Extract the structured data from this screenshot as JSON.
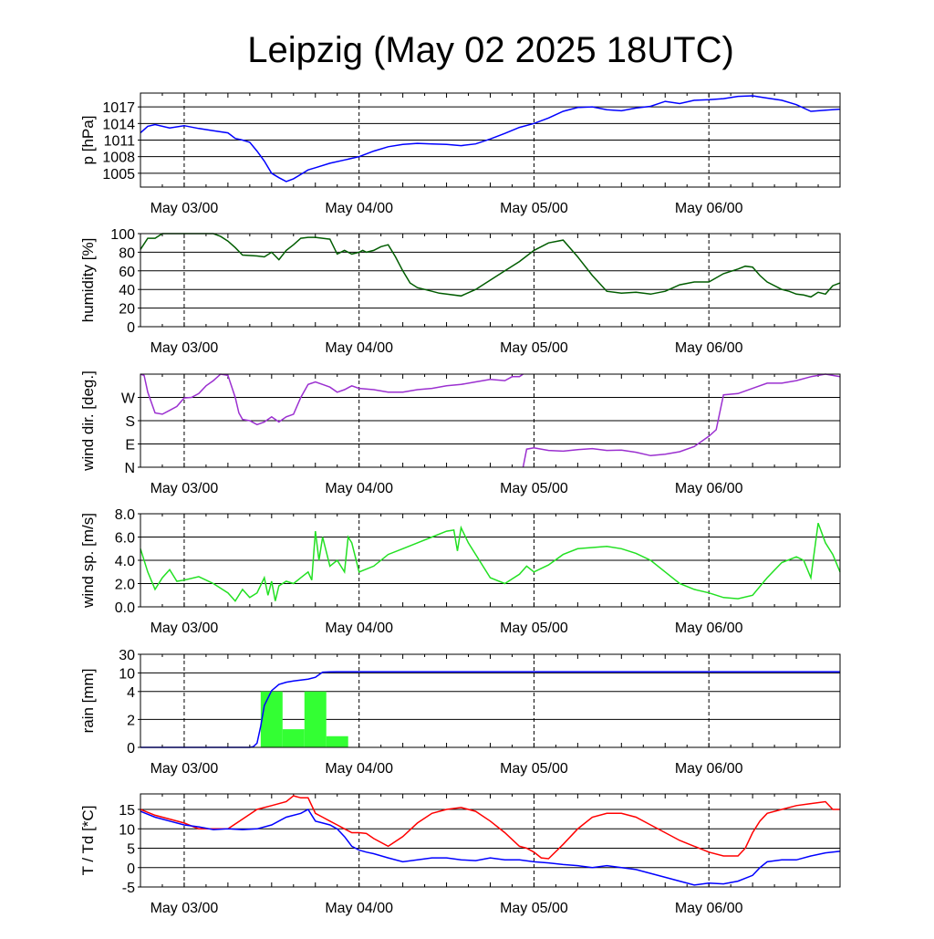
{
  "title": "Leipzig (May 02 2025 18UTC)",
  "x_tick_labels": [
    "May 03/00",
    "May 04/00",
    "May 05/00",
    "May 06/00"
  ],
  "colors": {
    "pressure": "#0000ff",
    "humidity": "#005c00",
    "wind_dir": "#9b30d0",
    "wind_speed": "#22e022",
    "rain_line": "#0000ff",
    "rain_bars": "#33ff33",
    "temperature": "#ff0000",
    "dewpoint": "#0000ff",
    "grid": "#000000"
  },
  "chart_data": [
    {
      "type": "line",
      "name": "pressure",
      "ylabel": "p [hPa]",
      "x_unit": "hours since May 02 18UTC",
      "xlim": [
        0,
        96
      ],
      "ylim": [
        1002.5,
        1019.5
      ],
      "yticks": [
        1005,
        1008,
        1011,
        1014,
        1017
      ],
      "ytick_labels": [
        "1005",
        "1008",
        "1011",
        "1014",
        "1017"
      ],
      "x_grid_hours": [
        6,
        30,
        54,
        78
      ],
      "series": [
        {
          "x": [
            0,
            1,
            2,
            4,
            6,
            8,
            10,
            12,
            13,
            14,
            15,
            16,
            17,
            18,
            19,
            20,
            21,
            22,
            23,
            24,
            26,
            28,
            30,
            32,
            34,
            36,
            38,
            40,
            42,
            44,
            46,
            48,
            50,
            52,
            54,
            56,
            58,
            60,
            62,
            64,
            66,
            68,
            70,
            72,
            74,
            76,
            78,
            80,
            82,
            84,
            86,
            88,
            90,
            92,
            94,
            96
          ],
          "y": [
            1012.3,
            1013.5,
            1013.8,
            1013.2,
            1013.6,
            1013.1,
            1012.7,
            1012.3,
            1011.3,
            1011.0,
            1010.6,
            1009.0,
            1007.2,
            1005.0,
            1004.2,
            1003.5,
            1004.0,
            1004.8,
            1005.6,
            1006.0,
            1006.8,
            1007.4,
            1008.0,
            1009.0,
            1009.8,
            1010.2,
            1010.4,
            1010.3,
            1010.2,
            1010.0,
            1010.3,
            1011.2,
            1012.2,
            1013.3,
            1014.0,
            1015.0,
            1016.2,
            1016.9,
            1017.0,
            1016.5,
            1016.3,
            1016.8,
            1017.1,
            1018.0,
            1017.6,
            1018.2,
            1018.3,
            1018.5,
            1018.9,
            1019.0,
            1018.6,
            1018.2,
            1017.4,
            1016.2,
            1016.4,
            1016.6
          ]
        }
      ]
    },
    {
      "type": "line",
      "name": "humidity",
      "ylabel": "humidity [%]",
      "xlim": [
        0,
        96
      ],
      "ylim": [
        0,
        100
      ],
      "yticks": [
        0,
        20,
        40,
        60,
        80,
        100
      ],
      "ytick_labels": [
        "0",
        "20",
        "40",
        "60",
        "80",
        "100"
      ],
      "x_grid_hours": [
        6,
        30,
        54,
        78
      ],
      "series": [
        {
          "x": [
            0,
            1,
            2,
            3,
            4,
            6,
            8,
            10,
            11,
            12,
            13,
            14,
            16,
            17,
            18,
            19,
            20,
            21,
            22,
            23,
            24,
            25,
            26,
            27,
            28,
            29,
            30,
            30.5,
            31,
            32,
            33,
            34,
            35,
            36,
            37,
            38,
            39,
            40,
            41,
            42,
            44,
            46,
            48,
            50,
            52,
            54,
            56,
            58,
            60,
            62,
            64,
            66,
            68,
            70,
            72,
            74,
            76,
            78,
            80,
            82,
            83,
            84,
            85,
            86,
            88,
            89,
            90,
            91,
            92,
            93,
            94,
            95,
            96
          ],
          "y": [
            83,
            95,
            95,
            100,
            100,
            100,
            100,
            100,
            97,
            92,
            85,
            77,
            76,
            75,
            80,
            72,
            82,
            88,
            95,
            96,
            96,
            95,
            94,
            78,
            82,
            78,
            80,
            82,
            80,
            82,
            86,
            88,
            75,
            60,
            47,
            42,
            40,
            38,
            36,
            35,
            33,
            40,
            50,
            60,
            70,
            82,
            90,
            93,
            75,
            55,
            38,
            36,
            37,
            35,
            38,
            45,
            48,
            48,
            57,
            62,
            65,
            64,
            55,
            48,
            40,
            38,
            35,
            34,
            32,
            37,
            35,
            44,
            47
          ]
        }
      ]
    },
    {
      "type": "line",
      "name": "wind_direction",
      "ylabel": "wind dir. [deg.]",
      "xlim": [
        0,
        96
      ],
      "ylim": [
        0,
        360
      ],
      "yticks": [
        0,
        90,
        180,
        270
      ],
      "ytick_labels": [
        "N",
        "E",
        "S",
        "W"
      ],
      "grid_values": [
        0,
        90,
        180,
        270,
        360
      ],
      "x_grid_hours": [
        6,
        30,
        54,
        78
      ],
      "series": [
        {
          "x": [
            0,
            0.5,
            1,
            2,
            3,
            4,
            5,
            6,
            7,
            8,
            9,
            10,
            11,
            12,
            13,
            13.5,
            14,
            15,
            16,
            17,
            18,
            19,
            20,
            21,
            22,
            23,
            24,
            25,
            26,
            27,
            28,
            29,
            30,
            32,
            34,
            36,
            38,
            40,
            42,
            44,
            46,
            48,
            50,
            51,
            52,
            52.5
          ],
          "y": [
            365,
            355,
            290,
            210,
            205,
            220,
            235,
            268,
            270,
            285,
            315,
            335,
            360,
            355,
            270,
            210,
            185,
            180,
            165,
            175,
            195,
            175,
            195,
            205,
            270,
            320,
            330,
            320,
            310,
            290,
            300,
            315,
            305,
            300,
            290,
            290,
            300,
            305,
            315,
            320,
            330,
            340,
            335,
            350,
            350,
            370
          ]
        },
        {
          "x": [
            52.5,
            53,
            54,
            56,
            58,
            60,
            62,
            64,
            66,
            68,
            70,
            72,
            74,
            76,
            78,
            79,
            80,
            82,
            84,
            86,
            88,
            90,
            92,
            94,
            96
          ],
          "y": [
            0,
            70,
            75,
            65,
            62,
            68,
            72,
            65,
            66,
            58,
            45,
            50,
            60,
            80,
            120,
            145,
            280,
            285,
            305,
            325,
            325,
            335,
            350,
            360,
            350
          ]
        }
      ]
    },
    {
      "type": "line",
      "name": "wind_speed",
      "ylabel": "wind sp. [m/s]",
      "xlim": [
        0,
        96
      ],
      "ylim": [
        0,
        8
      ],
      "yticks": [
        0,
        2,
        4,
        6,
        8
      ],
      "ytick_labels": [
        "0.0",
        "2.0",
        "4.0",
        "6.0",
        "8.0"
      ],
      "x_grid_hours": [
        6,
        30,
        54,
        78
      ],
      "series": [
        {
          "x": [
            0,
            1,
            2,
            3,
            4,
            5,
            6,
            8,
            10,
            12,
            13,
            14,
            15,
            16,
            17,
            17.5,
            18,
            18.5,
            19,
            20,
            21,
            22,
            23,
            23.5,
            24,
            24.5,
            25,
            26,
            27,
            28,
            28.5,
            29,
            30,
            32,
            34,
            36,
            38,
            40,
            42,
            43,
            43.5,
            44,
            45,
            46,
            48,
            50,
            52,
            53,
            54,
            56,
            58,
            60,
            62,
            64,
            66,
            68,
            70,
            72,
            74,
            76,
            78,
            80,
            82,
            84,
            86,
            88,
            90,
            91,
            92,
            93,
            94,
            95,
            96
          ],
          "y": [
            5,
            3,
            1.5,
            2.5,
            3.2,
            2.2,
            2.3,
            2.6,
            2,
            1.2,
            0.5,
            1.5,
            0.8,
            1.2,
            2.5,
            1.0,
            2.2,
            0.5,
            1.8,
            2.2,
            2.0,
            2.5,
            3.0,
            2.3,
            6.5,
            4.0,
            6.0,
            3.5,
            4.0,
            3.0,
            6.0,
            5.5,
            3.0,
            3.5,
            4.5,
            5.0,
            5.5,
            6.0,
            6.5,
            6.6,
            4.8,
            6.8,
            5.5,
            4.5,
            2.5,
            2.0,
            2.8,
            3.5,
            3.0,
            3.6,
            4.5,
            5.0,
            5.1,
            5.2,
            5.0,
            4.6,
            4.0,
            3.0,
            2.0,
            1.5,
            1.2,
            0.8,
            0.7,
            1.0,
            2.5,
            3.8,
            4.3,
            4.0,
            2.5,
            7.2,
            5.5,
            4.5,
            3.0
          ]
        }
      ]
    },
    {
      "type": "bar",
      "name": "rain",
      "ylabel": "rain [mm]",
      "xlim": [
        0,
        96
      ],
      "ylim_axis_position": [
        0,
        5
      ],
      "yticks": [
        0,
        2,
        4,
        10,
        30
      ],
      "ytick_labels": [
        "0",
        "2",
        "4",
        "10",
        "30"
      ],
      "ytick_axis_position": [
        0,
        1.5,
        3,
        4,
        5
      ],
      "x_grid_hours": [
        6,
        30,
        54,
        78
      ],
      "bars_mm": [
        {
          "x0": 16.5,
          "x1": 19.5,
          "value": 4.0
        },
        {
          "x0": 19.5,
          "x1": 22.5,
          "value": 1.3
        },
        {
          "x0": 22.5,
          "x1": 25.5,
          "value": 4.0
        },
        {
          "x0": 25.5,
          "x1": 28.5,
          "value": 0.8
        }
      ],
      "accumulated_line_mm": {
        "x": [
          0,
          15,
          15.5,
          16,
          16.5,
          17,
          18,
          19,
          20,
          21,
          22,
          23,
          24,
          24.5,
          25,
          26,
          27,
          28,
          30,
          40,
          50,
          60,
          70,
          80,
          90,
          96
        ],
        "y": [
          0,
          0,
          0.05,
          0.3,
          1.5,
          3.0,
          4.3,
          6.3,
          7.0,
          7.4,
          7.7,
          8.0,
          8.6,
          9.4,
          10.8,
          11.2,
          11.3,
          11.3,
          11.3,
          11.3,
          11.3,
          11.3,
          11.3,
          11.3,
          11.3,
          11.3
        ]
      }
    },
    {
      "type": "line",
      "name": "temperature_dewpoint",
      "ylabel": "T / Td [*C]",
      "xlim": [
        0,
        96
      ],
      "ylim": [
        -5,
        19
      ],
      "yticks": [
        -5,
        0,
        5,
        10,
        15
      ],
      "ytick_labels": [
        "-5",
        "0",
        "5",
        "10",
        "15"
      ],
      "x_grid_hours": [
        6,
        30,
        54,
        78
      ],
      "series": [
        {
          "name": "T",
          "x": [
            0,
            2,
            4,
            6,
            8,
            10,
            12,
            14,
            16,
            18,
            20,
            21,
            22,
            23,
            24,
            25,
            26,
            27,
            28,
            29,
            30,
            31,
            32,
            34,
            36,
            38,
            40,
            42,
            44,
            46,
            48,
            50,
            52,
            53,
            54,
            55,
            56,
            58,
            60,
            62,
            64,
            66,
            68,
            70,
            72,
            74,
            76,
            78,
            80,
            82,
            83,
            84,
            85,
            86,
            88,
            90,
            92,
            94,
            95,
            96
          ],
          "y": [
            15,
            13.5,
            12.5,
            11.5,
            10,
            10,
            10,
            12.5,
            15,
            16,
            17,
            18.5,
            18,
            18,
            14,
            13,
            12,
            11,
            10,
            9,
            9,
            8.8,
            7.5,
            5.5,
            8,
            11.5,
            14,
            15,
            15.5,
            14.5,
            12,
            9,
            5.5,
            5,
            4,
            2.5,
            2.3,
            6,
            10,
            13,
            14,
            14,
            13,
            11,
            9,
            7,
            5.5,
            4,
            3,
            3,
            5,
            9,
            12,
            14,
            15,
            16,
            16.5,
            17,
            15,
            15
          ]
        },
        {
          "name": "Td",
          "x": [
            0,
            2,
            4,
            6,
            8,
            10,
            12,
            14,
            16,
            18,
            20,
            22,
            23,
            24,
            25,
            26,
            27,
            28,
            29,
            30,
            31,
            32,
            34,
            36,
            38,
            40,
            42,
            44,
            46,
            48,
            50,
            52,
            54,
            56,
            58,
            60,
            62,
            64,
            66,
            68,
            70,
            72,
            74,
            76,
            78,
            80,
            82,
            84,
            85,
            86,
            88,
            90,
            92,
            94,
            96
          ],
          "y": [
            14.5,
            13,
            12,
            11,
            10.5,
            9.8,
            10,
            9.8,
            10,
            11,
            13,
            14,
            15,
            12,
            11.5,
            11,
            10,
            8,
            5.5,
            4.5,
            4,
            3.6,
            2.5,
            1.5,
            2,
            2.5,
            2.5,
            2.0,
            1.8,
            2.5,
            2.0,
            2.0,
            1.5,
            1.2,
            0.8,
            0.5,
            0,
            0.5,
            0,
            -0.5,
            -1.5,
            -2.5,
            -3.5,
            -4.5,
            -4.0,
            -4.2,
            -3.5,
            -2,
            0,
            1.5,
            2,
            2,
            3,
            3.8,
            4.2
          ]
        }
      ]
    }
  ]
}
